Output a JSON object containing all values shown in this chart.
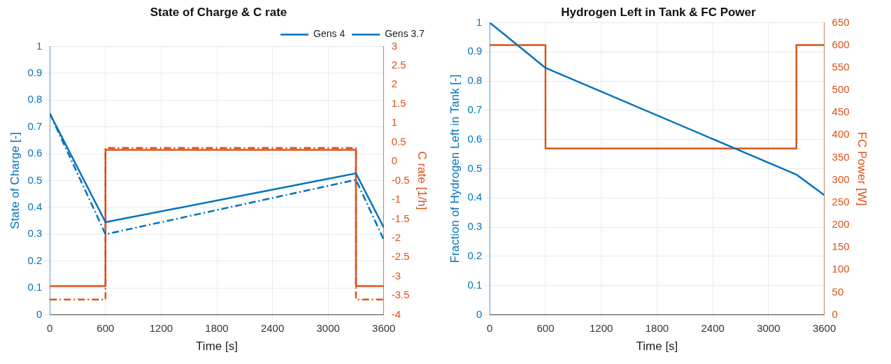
{
  "chart_data": [
    {
      "type": "line",
      "title": "State of Charge & C rate",
      "xlabel": "Time [s]",
      "ylabel": "State of Charge [-]",
      "y2label": "C rate [1/h]",
      "xlim": [
        0,
        3600
      ],
      "xticks": [
        0,
        600,
        1200,
        1800,
        2400,
        3000,
        3600
      ],
      "ylim": [
        0,
        1
      ],
      "yticks": [
        0,
        0.1,
        0.2,
        0.3,
        0.4,
        0.5,
        0.6,
        0.7,
        0.8,
        0.9,
        1
      ],
      "y2lim": [
        -4,
        3
      ],
      "y2ticks": [
        -4,
        -3.5,
        -3,
        -2.5,
        -2,
        -1.5,
        -1,
        -0.5,
        0,
        0.5,
        1,
        1.5,
        2,
        2.5,
        3
      ],
      "grid": true,
      "legend": "top right",
      "marker": "none",
      "series": [
        {
          "name": "Gens 4",
          "type": "line",
          "color": "#0072bd",
          "line_style": "dashed",
          "x": [
            0,
            600,
            3300,
            3600
          ],
          "values": [
            0.75,
            0.3,
            0.503,
            0.28
          ]
        },
        {
          "name": "Gens 3.7",
          "type": "line",
          "color": "#0072bd",
          "line_style": "solid",
          "x": [
            0,
            600,
            3300,
            3600
          ],
          "values": [
            0.75,
            0.345,
            0.527,
            0.325
          ]
        },
        {
          "type": "step",
          "axis": "y2",
          "color": "#d95319",
          "line_style": "dashed",
          "x": [
            0,
            600,
            3300,
            3600
          ],
          "values": [
            -3.6,
            0.35,
            -3.6,
            -3.6
          ]
        },
        {
          "type": "step",
          "axis": "y2",
          "color": "#d95319",
          "line_style": "solid",
          "x": [
            0,
            600,
            3300,
            3600
          ],
          "values": [
            -3.25,
            0.3,
            -3.25,
            -3.25
          ]
        }
      ]
    },
    {
      "type": "line",
      "title": "Hydrogen Left in Tank & FC Power",
      "xlabel": "Time [s]",
      "ylabel": "Fraction of Hydrogen Left in Tank [-]",
      "y2label": "FC Power [W]",
      "xlim": [
        0,
        3600
      ],
      "xticks": [
        0,
        600,
        1200,
        1800,
        2400,
        3000,
        3600
      ],
      "ylim": [
        0,
        1
      ],
      "yticks": [
        0,
        0.1,
        0.2,
        0.3,
        0.4,
        0.5,
        0.6,
        0.7,
        0.8,
        0.9,
        1
      ],
      "y2lim": [
        0,
        650
      ],
      "y2ticks": [
        0,
        50,
        100,
        150,
        200,
        250,
        300,
        350,
        400,
        450,
        500,
        550,
        600,
        650
      ],
      "grid": true,
      "marker": "none",
      "series": [
        {
          "type": "line",
          "color": "#0072bd",
          "line_style": "solid",
          "x": [
            0,
            600,
            3300,
            3600
          ],
          "values": [
            1,
            0.845,
            0.48,
            0.41
          ]
        },
        {
          "type": "step",
          "axis": "y2",
          "color": "#d95319",
          "line_style": "solid",
          "x": [
            0,
            600,
            3300,
            3600
          ],
          "values": [
            600,
            370,
            600,
            600
          ]
        }
      ]
    }
  ]
}
